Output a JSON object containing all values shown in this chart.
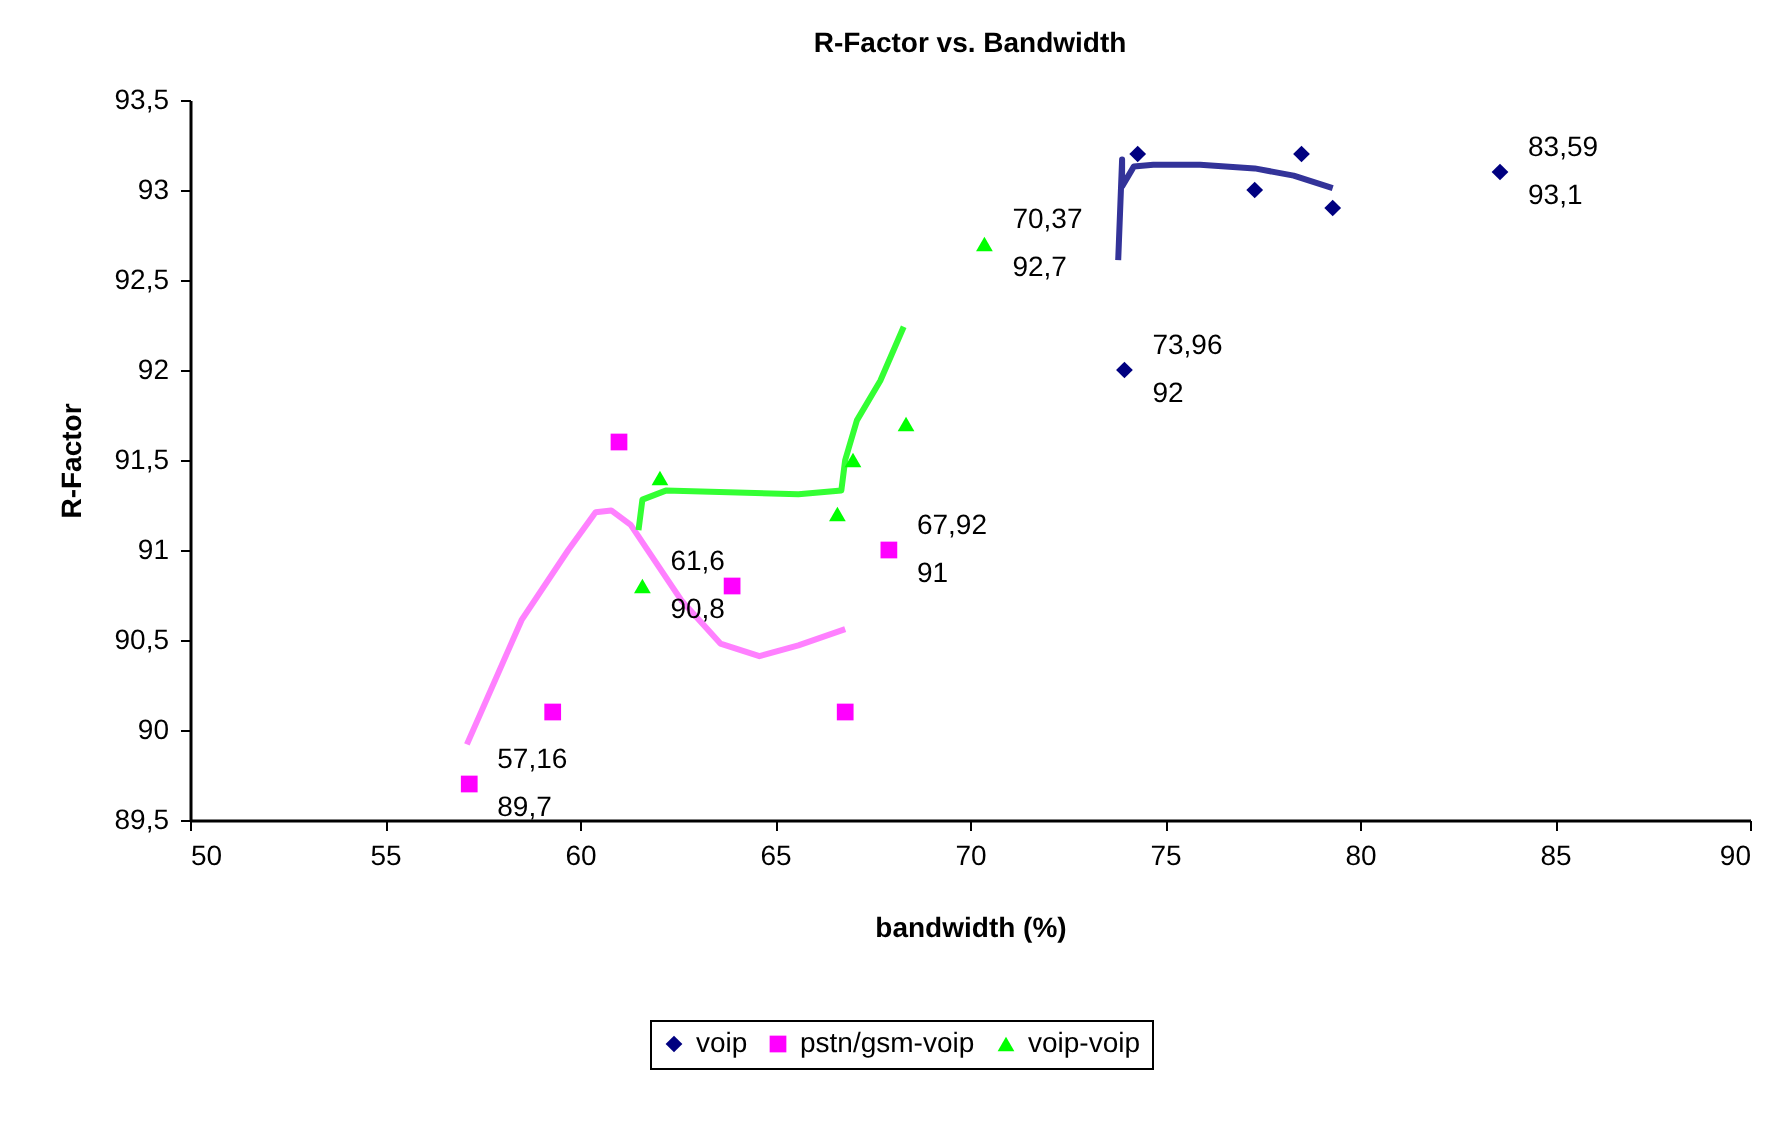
{
  "chart_data": {
    "type": "scatter",
    "title": "R-Factor vs. Bandwidth",
    "xlabel": "bandwidth (%)",
    "ylabel": "R-Factor",
    "xlim": [
      50,
      90
    ],
    "xticks": [
      50,
      55,
      60,
      65,
      70,
      75,
      80,
      85,
      90
    ],
    "ylim": [
      89.5,
      93.5
    ],
    "yticks": [
      {
        "value": 89.5,
        "label": "89,5"
      },
      90,
      {
        "value": 90.5,
        "label": "90,5"
      },
      91,
      {
        "value": 91.5,
        "label": "91,5"
      },
      92,
      {
        "value": 92.5,
        "label": "92,5"
      },
      93,
      {
        "value": 93.5,
        "label": "93,5"
      }
    ],
    "grid": false,
    "legend": "bottom",
    "series": [
      {
        "name": "voip",
        "color": "#000080",
        "marker": "diamond",
        "x": [
          73.96,
          74.3,
          77.3,
          78.5,
          79.3,
          83.59
        ],
        "values": [
          92,
          93.2,
          93.0,
          93.2,
          92.9,
          93.1
        ]
      },
      {
        "name": "pstn/gsm-voip",
        "color": "#ff00ff",
        "marker": "square",
        "x": [
          57.16,
          59.3,
          61.0,
          63.9,
          66.8,
          67.92
        ],
        "values": [
          89.7,
          90.1,
          91.6,
          90.8,
          90.1,
          91
        ]
      },
      {
        "name": "voip-voip",
        "color": "#00ff00",
        "marker": "triangle",
        "x": [
          61.6,
          62.05,
          66.6,
          67.0,
          68.36,
          70.37
        ],
        "values": [
          90.8,
          91.4,
          91.2,
          91.5,
          91.7,
          92.7
        ]
      },
      {
        "type": "line",
        "color": "#333399",
        "x": [
          73.8,
          73.9,
          73.9,
          74.2,
          74.7,
          75.9,
          77.3,
          78.3,
          79.3
        ],
        "values": [
          92.61,
          93.17,
          93.02,
          93.13,
          93.14,
          93.14,
          93.12,
          93.08,
          93.01
        ]
      },
      {
        "type": "line",
        "color": "#ff80ff",
        "x": [
          57.1,
          58.5,
          59.7,
          60.4,
          60.8,
          61.3,
          62.6,
          63.6,
          64.6,
          65.6,
          66.8
        ],
        "values": [
          89.92,
          90.61,
          91.0,
          91.21,
          91.22,
          91.14,
          90.72,
          90.48,
          90.41,
          90.47,
          90.56
        ]
      },
      {
        "type": "line",
        "color": "#33ff33",
        "x": [
          61.5,
          61.6,
          62.2,
          65.6,
          66.7,
          66.8,
          67.1,
          67.7,
          68.3
        ],
        "values": [
          91.11,
          91.28,
          91.33,
          91.31,
          91.33,
          91.5,
          91.72,
          91.94,
          92.24
        ]
      }
    ],
    "annotations": [
      {
        "text": "83,59\n93,1",
        "x": 83.59,
        "y": 93.1
      },
      {
        "text": "73,96\n92",
        "x": 73.96,
        "y": 92
      },
      {
        "text": "70,37\n92,7",
        "x": 70.37,
        "y": 92.7
      },
      {
        "text": "67,92\n91",
        "x": 67.92,
        "y": 91
      },
      {
        "text": "61,6\n90,8",
        "x": 61.6,
        "y": 90.8
      },
      {
        "text": "57,16\n89,7",
        "x": 57.16,
        "y": 89.7
      }
    ]
  }
}
